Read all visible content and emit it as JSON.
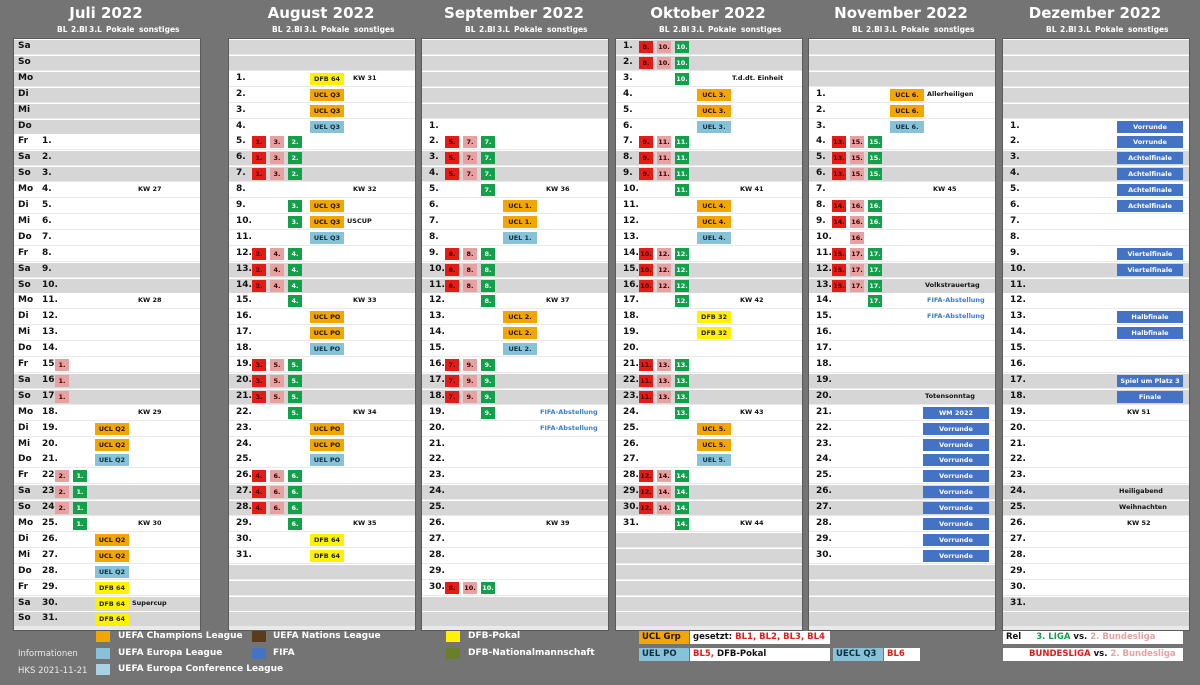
{
  "columns": [
    "BL",
    "2.Bl",
    "3.L",
    "Pokale",
    "sonstiges"
  ],
  "months": [
    {
      "title": "Juli 2022",
      "offset": 6,
      "length": 31,
      "days": [
        {},
        {},
        {},
        {
          "kw": "KW 27"
        },
        {},
        {},
        {},
        {},
        {},
        {},
        {
          "kw": "KW 28"
        },
        {},
        {},
        {},
        {
          "c2": "1."
        },
        {
          "c2": "1."
        },
        {
          "c2": "1."
        },
        {
          "kw": "KW 29"
        },
        {
          "p": "UCL Q2",
          "pt": "ucl"
        },
        {
          "p": "UCL Q2",
          "pt": "ucl"
        },
        {
          "p": "UEL Q2",
          "pt": "uel"
        },
        {
          "c2": "2.",
          "c3": "1."
        },
        {
          "c2": "2.",
          "c3": "1."
        },
        {
          "c2": "2.",
          "c3": "1."
        },
        {
          "c3": "1.",
          "kw": "KW 30"
        },
        {
          "p": "UCL Q2",
          "pt": "ucl"
        },
        {
          "p": "UCL Q2",
          "pt": "ucl"
        },
        {
          "p": "UEL Q2",
          "pt": "uel"
        },
        {
          "p": "DFB 64",
          "pt": "dfb"
        },
        {
          "p": "DFB 64",
          "pt": "dfb",
          "note": "Supercup"
        },
        {
          "p": "DFB 64",
          "pt": "dfb"
        }
      ]
    },
    {
      "title": "August 2022",
      "offset": 2,
      "length": 31,
      "days": [
        {
          "p": "DFB 64",
          "pt": "dfb",
          "kw": "KW 31"
        },
        {
          "p": "UCL Q3",
          "pt": "ucl"
        },
        {
          "p": "UCL Q3",
          "pt": "ucl"
        },
        {
          "p": "UEL Q3",
          "pt": "uel"
        },
        {
          "c1": "1.",
          "c2": "3.",
          "c3": "2."
        },
        {
          "c1": "1.",
          "c2": "3.",
          "c3": "2."
        },
        {
          "c1": "1.",
          "c2": "3.",
          "c3": "2."
        },
        {
          "kw": "KW 32"
        },
        {
          "c3": "3.",
          "p": "UCL Q3",
          "pt": "ucl"
        },
        {
          "c3": "3.",
          "p": "UCL Q3",
          "pt": "ucl",
          "note": "USCUP"
        },
        {
          "p": "UEL Q3",
          "pt": "uel"
        },
        {
          "c1": "2.",
          "c2": "4.",
          "c3": "4."
        },
        {
          "c1": "2.",
          "c2": "4.",
          "c3": "4."
        },
        {
          "c1": "2.",
          "c2": "4.",
          "c3": "4."
        },
        {
          "c3": "4.",
          "kw": "KW 33"
        },
        {
          "p": "UCL PO",
          "pt": "ucl"
        },
        {
          "p": "UCL PO",
          "pt": "ucl"
        },
        {
          "p": "UEL PO",
          "pt": "uel"
        },
        {
          "c1": "3.",
          "c2": "5.",
          "c3": "5."
        },
        {
          "c1": "3.",
          "c2": "5.",
          "c3": "5."
        },
        {
          "c1": "3.",
          "c2": "5.",
          "c3": "5."
        },
        {
          "c3": "5.",
          "kw": "KW 34"
        },
        {
          "p": "UCL PO",
          "pt": "ucl"
        },
        {
          "p": "UCL PO",
          "pt": "ucl"
        },
        {
          "p": "UEL PO",
          "pt": "uel"
        },
        {
          "c1": "4.",
          "c2": "6.",
          "c3": "6."
        },
        {
          "c1": "4.",
          "c2": "6.",
          "c3": "6."
        },
        {
          "c1": "4.",
          "c2": "6.",
          "c3": "6."
        },
        {
          "c3": "6.",
          "kw": "KW 35"
        },
        {
          "p": "DFB 64",
          "pt": "dfb"
        },
        {
          "p": "DFB 64",
          "pt": "dfb"
        }
      ]
    },
    {
      "title": "September 2022",
      "offset": 5,
      "length": 30,
      "days": [
        {},
        {
          "c1": "5.",
          "c2": "7.",
          "c3": "7."
        },
        {
          "c1": "5.",
          "c2": "7.",
          "c3": "7."
        },
        {
          "c1": "5.",
          "c2": "7.",
          "c3": "7."
        },
        {
          "c3": "7.",
          "kw": "KW 36"
        },
        {
          "p": "UCL 1.",
          "pt": "ucl"
        },
        {
          "p": "UCL 1.",
          "pt": "ucl"
        },
        {
          "p": "UEL 1.",
          "pt": "uel"
        },
        {
          "c1": "6.",
          "c2": "8.",
          "c3": "8."
        },
        {
          "c1": "6.",
          "c2": "8.",
          "c3": "8."
        },
        {
          "c1": "6.",
          "c2": "8.",
          "c3": "8."
        },
        {
          "c3": "8.",
          "kw": "KW 37"
        },
        {
          "p": "UCL 2.",
          "pt": "ucl"
        },
        {
          "p": "UCL 2.",
          "pt": "ucl"
        },
        {
          "p": "UEL 2.",
          "pt": "uel"
        },
        {
          "c1": "7.",
          "c2": "9.",
          "c3": "9."
        },
        {
          "c1": "7.",
          "c2": "9.",
          "c3": "9."
        },
        {
          "c1": "7.",
          "c2": "9.",
          "c3": "9."
        },
        {
          "c3": "9.",
          "note": "FIFA-Abstellung",
          "blue": true
        },
        {
          "note": "FIFA-Abstellung",
          "blue": true
        },
        {},
        {},
        {},
        {},
        {},
        {
          "kw": "KW 39"
        },
        {},
        {},
        {},
        {
          "c1": "8.",
          "c2": "10.",
          "c3": "10."
        }
      ]
    },
    {
      "title": "Oktober 2022",
      "offset": 0,
      "length": 31,
      "days": [
        {
          "c1": "8.",
          "c2": "10.",
          "c3": "10."
        },
        {
          "c1": "8.",
          "c2": "10.",
          "c3": "10."
        },
        {
          "c3": "10.",
          "note": "T.d.dt. Einheit"
        },
        {
          "p": "UCL 3.",
          "pt": "ucl"
        },
        {
          "p": "UCL 3.",
          "pt": "ucl"
        },
        {
          "p": "UEL 3.",
          "pt": "uel"
        },
        {
          "c1": "9.",
          "c2": "11.",
          "c3": "11."
        },
        {
          "c1": "9.",
          "c2": "11.",
          "c3": "11."
        },
        {
          "c1": "9.",
          "c2": "11.",
          "c3": "11."
        },
        {
          "c3": "11.",
          "kw": "KW 41"
        },
        {
          "p": "UCL 4.",
          "pt": "ucl"
        },
        {
          "p": "UCL 4.",
          "pt": "ucl"
        },
        {
          "p": "UEL 4.",
          "pt": "uel"
        },
        {
          "c1": "10.",
          "c2": "12.",
          "c3": "12."
        },
        {
          "c1": "10.",
          "c2": "12.",
          "c3": "12."
        },
        {
          "c1": "10.",
          "c2": "12.",
          "c3": "12."
        },
        {
          "c3": "12.",
          "kw": "KW 42"
        },
        {
          "p": "DFB 32",
          "pt": "dfb"
        },
        {
          "p": "DFB 32",
          "pt": "dfb"
        },
        {},
        {
          "c1": "11.",
          "c2": "13.",
          "c3": "13."
        },
        {
          "c1": "11.",
          "c2": "13.",
          "c3": "13."
        },
        {
          "c1": "11.",
          "c2": "13.",
          "c3": "13."
        },
        {
          "c3": "13.",
          "kw": "KW 43"
        },
        {
          "p": "UCL 5.",
          "pt": "ucl"
        },
        {
          "p": "UCL 5.",
          "pt": "ucl"
        },
        {
          "p": "UEL 5.",
          "pt": "uel"
        },
        {
          "c1": "12.",
          "c2": "14.",
          "c3": "14."
        },
        {
          "c1": "12.",
          "c2": "14.",
          "c3": "14."
        },
        {
          "c1": "12.",
          "c2": "14.",
          "c3": "14."
        },
        {
          "c3": "14.",
          "kw": "KW 44"
        }
      ]
    },
    {
      "title": "November 2022",
      "offset": 3,
      "length": 30,
      "days": [
        {
          "p": "UCL 6.",
          "pt": "ucl",
          "note": "Allerheiligen"
        },
        {
          "p": "UCL 6.",
          "pt": "ucl"
        },
        {
          "p": "UEL 6.",
          "pt": "uel"
        },
        {
          "c1": "13.",
          "c2": "15.",
          "c3": "15."
        },
        {
          "c1": "13.",
          "c2": "15.",
          "c3": "15."
        },
        {
          "c1": "13.",
          "c2": "15.",
          "c3": "15."
        },
        {
          "kw": "KW 45"
        },
        {
          "c1": "14.",
          "c2": "16.",
          "c3": "16."
        },
        {
          "c1": "14.",
          "c2": "16.",
          "c3": "16."
        },
        {
          "c2": "16."
        },
        {
          "c1": "15.",
          "c2": "17.",
          "c3": "17."
        },
        {
          "c1": "15.",
          "c2": "17.",
          "c3": "17."
        },
        {
          "c1": "15.",
          "c2": "17.",
          "c3": "17.",
          "note": "Volkstrauertag"
        },
        {
          "c3": "17.",
          "note": "FIFA-Abstellung",
          "blue": true
        },
        {
          "note": "FIFA-Abstellung",
          "blue": true
        },
        {},
        {},
        {},
        {},
        {
          "note": "Totensonntag"
        },
        {
          "wc": "WM 2022"
        },
        {
          "wc": "Vorrunde"
        },
        {
          "wc": "Vorrunde"
        },
        {
          "wc": "Vorrunde"
        },
        {
          "wc": "Vorrunde"
        },
        {
          "wc": "Vorrunde"
        },
        {
          "wc": "Vorrunde"
        },
        {
          "wc": "Vorrunde"
        },
        {
          "wc": "Vorrunde"
        },
        {
          "wc": "Vorrunde"
        }
      ]
    },
    {
      "title": "Dezember 2022",
      "offset": 5,
      "length": 31,
      "days": [
        {
          "wc": "Vorrunde"
        },
        {
          "wc": "Vorrunde"
        },
        {
          "wc": "Achtelfinale"
        },
        {
          "wc": "Achtelfinale"
        },
        {
          "wc": "Achtelfinale"
        },
        {
          "wc": "Achtelfinale"
        },
        {},
        {},
        {
          "wc": "Viertelfinale"
        },
        {
          "wc": "Viertelfinale"
        },
        {},
        {},
        {
          "wc": "Halbfinale"
        },
        {
          "wc": "Halbfinale"
        },
        {},
        {},
        {
          "wc": "Spiel um Platz 3"
        },
        {
          "wc": "Finale"
        },
        {
          "kw": "KW 51"
        },
        {},
        {},
        {},
        {},
        {
          "note": "Heiligabend"
        },
        {
          "note": "Weihnachten"
        },
        {
          "kw": "KW 52"
        },
        {},
        {},
        {},
        {},
        {}
      ]
    }
  ],
  "weekdays": [
    "Sa",
    "So",
    "Mo",
    "Di",
    "Mi",
    "Do",
    "Fr"
  ],
  "legend": {
    "ucl": "UEFA Champions League",
    "uel": "UEFA Europa League",
    "uecl": "UEFA Europa Conference League",
    "nations": "UEFA Nations League",
    "fifa": "FIFA",
    "dfb": "DFB-Pokal",
    "dfbnm": "DFB-Nationalmannschaft"
  },
  "info": {
    "label": "Informationen",
    "version": "HKS 2021-11-21"
  },
  "seeding": {
    "ucl_grp": "UCL Grp",
    "gesetzt": "gesetzt:",
    "ucl_teams": "BL1, BL2, BL3, BL4",
    "uel_po": "UEL PO",
    "uel_teams": "BL5,",
    "dfb_pokal": "DFB-Pokal",
    "uecl_q3": "UECL Q3",
    "uecl_teams": "BL6"
  },
  "relegation": {
    "rel": "Rel",
    "liga3": "3. LIGA",
    "vs": "vs.",
    "bl2": "2. Bundesliga",
    "bl": "BUNDESLIGA",
    "vs2": "vs.",
    "bl2b": "2. Bundesliga"
  },
  "colors": {
    "ucl": "#f3a600",
    "uel": "#88c2d8",
    "uecl": "#a7d3e4",
    "nations": "#5b3c1a",
    "fifa": "#4472c4",
    "dfb": "#fff200",
    "dfbnm": "#6a7f2a",
    "bl1": "#e41b17",
    "bl2": "#e6a1a1",
    "bl3": "#13a04b"
  }
}
